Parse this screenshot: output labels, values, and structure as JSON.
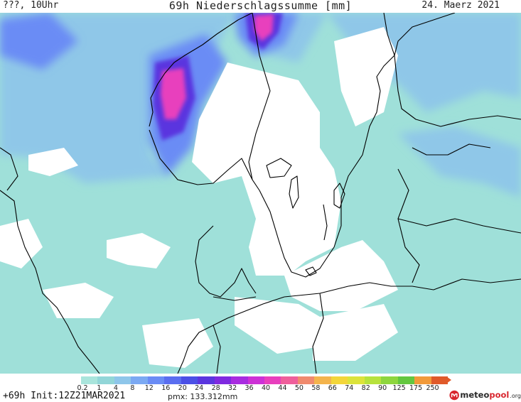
{
  "header": {
    "left": "???, 10Uhr",
    "title": "69h Niederschlagssumme [mm]",
    "date": "24. Maerz 2021"
  },
  "legend": {
    "labels": [
      "0.2",
      "1",
      "4",
      "8",
      "12",
      "16",
      "20",
      "24",
      "28",
      "32",
      "36",
      "40",
      "44",
      "50",
      "58",
      "66",
      "74",
      "82",
      "90",
      "125",
      "175",
      "250"
    ],
    "colors": [
      "#a9e5dc",
      "#92d6d8",
      "#8ec6ea",
      "#7ba9f3",
      "#6a8cf5",
      "#5a6ef0",
      "#4b50e6",
      "#5a36df",
      "#7f2ae0",
      "#a82ce0",
      "#cd31d6",
      "#e83fbd",
      "#ef5f9b",
      "#f08a6e",
      "#f4b44c",
      "#f3d63a",
      "#dce33b",
      "#b7e23d",
      "#8ed63e",
      "#63c73f",
      "#f29a3a",
      "#e05a2a"
    ]
  },
  "map_colors": {
    "background": "#9fe0d9",
    "dry": "#ffffff",
    "coast": "#000000",
    "moderate": "#8fc7e8",
    "heavy": "#6a8cf5",
    "very_heavy": "#5a36df",
    "extreme": "#e83fbd"
  },
  "footer": {
    "forecast": "+69h Init:12Z21MAR2021",
    "pmx": "pmx: 133.312mm"
  },
  "logo": {
    "meteo": "meteo",
    "pool": "pool",
    "org": ".org"
  }
}
